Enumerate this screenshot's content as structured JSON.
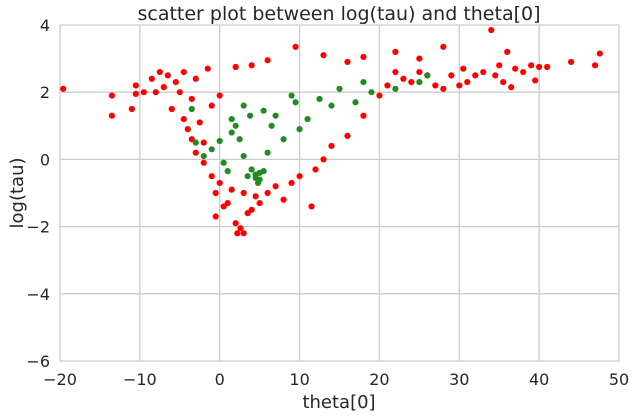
{
  "chart_data": {
    "type": "scatter",
    "title": "scatter plot between log(tau) and theta[0]",
    "xlabel": "theta[0]",
    "ylabel": "log(tau)",
    "xlim": [
      -20,
      50
    ],
    "ylim": [
      -6,
      4
    ],
    "x_ticks": [
      -20,
      -10,
      0,
      10,
      20,
      30,
      40,
      50
    ],
    "y_ticks": [
      -6,
      -4,
      -2,
      0,
      2,
      4
    ],
    "grid": true,
    "colors": {
      "background": "#ffffff",
      "grid": "#cccccc",
      "text": "#262626"
    },
    "series": [
      {
        "color": "#ff0000",
        "points": [
          [
            -19.6,
            2.1
          ],
          [
            -13.5,
            1.9
          ],
          [
            -13.5,
            1.3
          ],
          [
            -11,
            1.5
          ],
          [
            -10.5,
            2.2
          ],
          [
            -10.5,
            1.95
          ],
          [
            -9.5,
            2.0
          ],
          [
            -8.5,
            2.4
          ],
          [
            -8,
            2.0
          ],
          [
            -7.5,
            2.6
          ],
          [
            -7,
            2.15
          ],
          [
            -6.5,
            2.5
          ],
          [
            -6,
            1.5
          ],
          [
            -5.5,
            2.3
          ],
          [
            -5,
            2.0
          ],
          [
            -4.5,
            1.2
          ],
          [
            -4.5,
            2.6
          ],
          [
            -4,
            0.9
          ],
          [
            -3.5,
            1.8
          ],
          [
            -3.5,
            0.6
          ],
          [
            -3,
            2.4
          ],
          [
            -3,
            0.2
          ],
          [
            -2.5,
            1.1
          ],
          [
            -2,
            0.5
          ],
          [
            -2,
            -0.1
          ],
          [
            -1.5,
            2.7
          ],
          [
            -1,
            -0.5
          ],
          [
            -1,
            1.6
          ],
          [
            -0.5,
            -1.0
          ],
          [
            0,
            1.9
          ],
          [
            0,
            -0.7
          ],
          [
            -0.5,
            -1.7
          ],
          [
            0.5,
            -1.4
          ],
          [
            1,
            -1.3
          ],
          [
            1.5,
            -0.9
          ],
          [
            2,
            -1.9
          ],
          [
            2.2,
            -2.2
          ],
          [
            2.6,
            -2.05
          ],
          [
            3,
            -2.2
          ],
          [
            3.5,
            -1.6
          ],
          [
            3,
            -1.0
          ],
          [
            4,
            -1.5
          ],
          [
            4.5,
            -1.1
          ],
          [
            5,
            -1.3
          ],
          [
            6,
            -1.0
          ],
          [
            7,
            -0.8
          ],
          [
            8,
            -1.2
          ],
          [
            9,
            -0.7
          ],
          [
            10,
            -0.5
          ],
          [
            11.5,
            -1.4
          ],
          [
            12,
            -0.3
          ],
          [
            13,
            0.0
          ],
          [
            14,
            0.4
          ],
          [
            16,
            0.7
          ],
          [
            18,
            1.3
          ],
          [
            20,
            1.9
          ],
          [
            21,
            2.2
          ],
          [
            22,
            2.6
          ],
          [
            23,
            2.4
          ],
          [
            24,
            2.3
          ],
          [
            25,
            2.6
          ],
          [
            26,
            2.5
          ],
          [
            27,
            2.2
          ],
          [
            28,
            2.1
          ],
          [
            29,
            2.5
          ],
          [
            30,
            2.2
          ],
          [
            30.5,
            2.7
          ],
          [
            31,
            2.3
          ],
          [
            32,
            2.5
          ],
          [
            33,
            2.6
          ],
          [
            34,
            3.85
          ],
          [
            34.5,
            2.5
          ],
          [
            35,
            2.8
          ],
          [
            35.5,
            2.3
          ],
          [
            36,
            3.2
          ],
          [
            36.5,
            2.15
          ],
          [
            37,
            2.7
          ],
          [
            38,
            2.6
          ],
          [
            39,
            2.8
          ],
          [
            39.5,
            2.35
          ],
          [
            40,
            2.75
          ],
          [
            41,
            2.75
          ],
          [
            44,
            2.9
          ],
          [
            47,
            2.8
          ],
          [
            47.6,
            3.15
          ],
          [
            9.5,
            3.35
          ],
          [
            13,
            3.1
          ],
          [
            16,
            2.9
          ],
          [
            18,
            3.05
          ],
          [
            22,
            3.2
          ],
          [
            25,
            3.0
          ],
          [
            28,
            3.35
          ],
          [
            6,
            2.95
          ],
          [
            4,
            2.8
          ],
          [
            2,
            2.75
          ]
        ]
      },
      {
        "color": "#228b22",
        "points": [
          [
            -3.5,
            1.5
          ],
          [
            -3,
            0.5
          ],
          [
            -2,
            0.1
          ],
          [
            -1,
            0.3
          ],
          [
            0,
            0.55
          ],
          [
            0.5,
            -0.1
          ],
          [
            1,
            -0.35
          ],
          [
            1.5,
            0.8
          ],
          [
            1.5,
            1.2
          ],
          [
            2,
            1.0
          ],
          [
            2.5,
            0.6
          ],
          [
            3,
            1.6
          ],
          [
            3,
            0.1
          ],
          [
            3.5,
            -0.5
          ],
          [
            4,
            -0.3
          ],
          [
            4.5,
            -0.45
          ],
          [
            4.5,
            -0.55
          ],
          [
            5,
            -0.4
          ],
          [
            5,
            -0.6
          ],
          [
            5.5,
            1.45
          ],
          [
            5.5,
            -0.35
          ],
          [
            6,
            0.2
          ],
          [
            6.5,
            1.0
          ],
          [
            7,
            1.3
          ],
          [
            8,
            0.6
          ],
          [
            9,
            1.9
          ],
          [
            9.5,
            1.7
          ],
          [
            10,
            0.9
          ],
          [
            11,
            1.2
          ],
          [
            12.5,
            1.8
          ],
          [
            14,
            1.6
          ],
          [
            15,
            2.1
          ],
          [
            17,
            1.7
          ],
          [
            18,
            2.3
          ],
          [
            19,
            2.0
          ],
          [
            22,
            2.1
          ],
          [
            25,
            2.3
          ],
          [
            26,
            2.5
          ],
          [
            4.8,
            -0.7
          ],
          [
            3.8,
            1.3
          ]
        ]
      }
    ]
  }
}
